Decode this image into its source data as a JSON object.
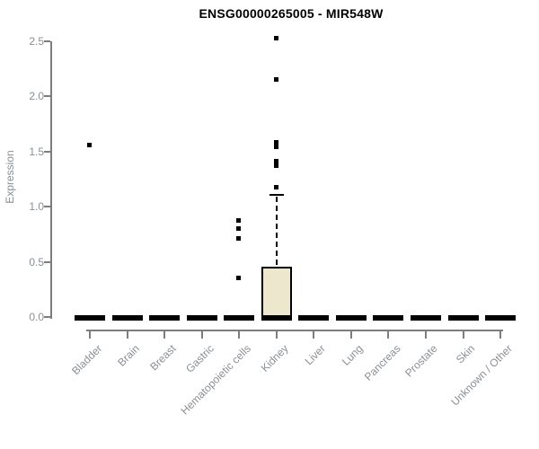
{
  "chart_data": {
    "type": "boxplot",
    "title": "ENSG00000265005 - MIR548W",
    "ylabel": "Expression",
    "xlabel": "",
    "ylim": [
      0,
      2.5
    ],
    "yticks": [
      "0.0",
      "0.5",
      "1.0",
      "1.5",
      "2.0",
      "2.5"
    ],
    "grid": false,
    "legend": "none",
    "categories": [
      "Bladder",
      "Brain",
      "Breast",
      "Gastric",
      "Hematopoietic cells",
      "Kidney",
      "Liver",
      "Lung",
      "Pancreas",
      "Prostate",
      "Skin",
      "Unknown / Other"
    ],
    "boxes": [
      {
        "category": "Bladder",
        "whisker_low": 0,
        "q1": 0,
        "median": 0,
        "q3": 0,
        "whisker_high": 0,
        "outliers": [
          1.56
        ]
      },
      {
        "category": "Brain",
        "whisker_low": 0,
        "q1": 0,
        "median": 0,
        "q3": 0,
        "whisker_high": 0,
        "outliers": []
      },
      {
        "category": "Breast",
        "whisker_low": 0,
        "q1": 0,
        "median": 0,
        "q3": 0,
        "whisker_high": 0,
        "outliers": []
      },
      {
        "category": "Gastric",
        "whisker_low": 0,
        "q1": 0,
        "median": 0,
        "q3": 0,
        "whisker_high": 0,
        "outliers": []
      },
      {
        "category": "Hematopoietic cells",
        "whisker_low": 0,
        "q1": 0,
        "median": 0,
        "q3": 0,
        "whisker_high": 0,
        "outliers": [
          0.36,
          0.72,
          0.81,
          0.88
        ]
      },
      {
        "category": "Kidney",
        "whisker_low": 0,
        "q1": 0,
        "median": 0,
        "q3": 0.46,
        "whisker_high": 1.11,
        "outliers": [
          1.18,
          1.38,
          1.42,
          1.55,
          1.59,
          2.16,
          2.53
        ]
      },
      {
        "category": "Liver",
        "whisker_low": 0,
        "q1": 0,
        "median": 0,
        "q3": 0,
        "whisker_high": 0,
        "outliers": []
      },
      {
        "category": "Lung",
        "whisker_low": 0,
        "q1": 0,
        "median": 0,
        "q3": 0,
        "whisker_high": 0,
        "outliers": []
      },
      {
        "category": "Pancreas",
        "whisker_low": 0,
        "q1": 0,
        "median": 0,
        "q3": 0,
        "whisker_high": 0,
        "outliers": []
      },
      {
        "category": "Prostate",
        "whisker_low": 0,
        "q1": 0,
        "median": 0,
        "q3": 0,
        "whisker_high": 0,
        "outliers": []
      },
      {
        "category": "Skin",
        "whisker_low": 0,
        "q1": 0,
        "median": 0,
        "q3": 0,
        "whisker_high": 0,
        "outliers": []
      },
      {
        "category": "Unknown / Other",
        "whisker_low": 0,
        "q1": 0,
        "median": 0,
        "q3": 0,
        "whisker_high": 0,
        "outliers": []
      }
    ],
    "colors": {
      "box_fill": "#ECE7CD",
      "box_border": "#000000",
      "median": "#000000",
      "outlier": "#000000",
      "axis": "#7d7d7d",
      "tick_label": "#8a8f94",
      "title": "#000000"
    }
  }
}
